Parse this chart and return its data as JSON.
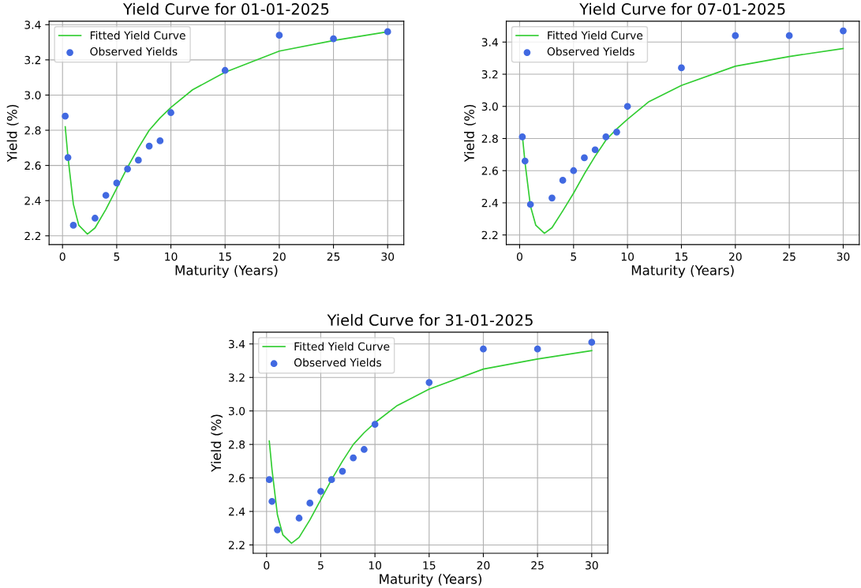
{
  "chart_data": [
    {
      "type": "line",
      "title": "Yield Curve for 01-01-2025",
      "xlabel": "Maturity (Years)",
      "ylabel": "Yield (%)",
      "xlim": [
        -1.24,
        31.49
      ],
      "ylim": [
        2.15,
        3.42
      ],
      "xticks": [
        0,
        5,
        10,
        15,
        20,
        25,
        30
      ],
      "yticks": [
        {
          "value": 2.2,
          "label": "2.2"
        },
        {
          "value": 2.4,
          "label": "2.4"
        },
        {
          "value": 2.6,
          "label": "2.6"
        },
        {
          "value": 2.8,
          "label": "2.8"
        },
        {
          "value": 3.0,
          "label": "3.0"
        },
        {
          "value": 3.2,
          "label": "3.2"
        },
        {
          "value": 3.4,
          "label": "3.4"
        }
      ],
      "grid": true,
      "legend": "top left",
      "series": [
        {
          "name": "Fitted Yield Curve",
          "color": "#32cd32",
          "x": [
            0.25,
            0.5,
            1,
            1.5,
            2.3,
            3,
            4,
            5,
            6,
            7,
            8,
            9,
            10,
            12,
            15,
            20,
            25,
            30
          ],
          "values": [
            2.82,
            2.65,
            2.38,
            2.26,
            2.21,
            2.245,
            2.35,
            2.47,
            2.59,
            2.7,
            2.8,
            2.87,
            2.93,
            3.03,
            3.13,
            3.25,
            3.31,
            3.36
          ]
        },
        {
          "name": "Observed Yields",
          "type": "scatter",
          "marker": "circle",
          "color": "#4169e1",
          "x": [
            0.25,
            0.5,
            1,
            3,
            4,
            5,
            6,
            7,
            8,
            9,
            10,
            15,
            20,
            25,
            30
          ],
          "values": [
            2.88,
            2.645,
            2.26,
            2.3,
            2.43,
            2.5,
            2.58,
            2.63,
            2.71,
            2.74,
            2.9,
            3.14,
            3.34,
            3.32,
            3.36
          ]
        }
      ]
    },
    {
      "type": "line",
      "title": "Yield Curve for 07-01-2025",
      "xlabel": "Maturity (Years)",
      "ylabel": "Yield (%)",
      "xlim": [
        -1.24,
        31.49
      ],
      "ylim": [
        2.14,
        3.53
      ],
      "xticks": [
        0,
        5,
        10,
        15,
        20,
        25,
        30
      ],
      "yticks": [
        {
          "value": 2.2,
          "label": "2.2"
        },
        {
          "value": 2.4,
          "label": "2.4"
        },
        {
          "value": 2.6,
          "label": "2.6"
        },
        {
          "value": 2.8,
          "label": "2.8"
        },
        {
          "value": 3.0,
          "label": "3.0"
        },
        {
          "value": 3.2,
          "label": "3.2"
        },
        {
          "value": 3.4,
          "label": "3.4"
        }
      ],
      "grid": true,
      "legend": "top left",
      "series": [
        {
          "name": "Fitted Yield Curve",
          "color": "#32cd32",
          "x": [
            0.25,
            0.5,
            1,
            1.5,
            2.3,
            3,
            4,
            5,
            6,
            7,
            8,
            9,
            10,
            12,
            15,
            20,
            25,
            30
          ],
          "values": [
            2.82,
            2.65,
            2.38,
            2.26,
            2.21,
            2.245,
            2.35,
            2.46,
            2.58,
            2.69,
            2.79,
            2.86,
            2.92,
            3.03,
            3.13,
            3.25,
            3.31,
            3.36
          ]
        },
        {
          "name": "Observed Yields",
          "type": "scatter",
          "marker": "circle",
          "color": "#4169e1",
          "x": [
            0.25,
            0.5,
            1,
            3,
            4,
            5,
            6,
            7,
            8,
            9,
            10,
            15,
            20,
            25,
            30
          ],
          "values": [
            2.81,
            2.66,
            2.39,
            2.43,
            2.54,
            2.6,
            2.68,
            2.73,
            2.81,
            2.84,
            3.0,
            3.24,
            3.44,
            3.44,
            3.47
          ]
        }
      ]
    },
    {
      "type": "line",
      "title": "Yield Curve for 31-01-2025",
      "xlabel": "Maturity (Years)",
      "ylabel": "Yield (%)",
      "xlim": [
        -1.24,
        31.49
      ],
      "ylim": [
        2.15,
        3.47
      ],
      "xticks": [
        0,
        5,
        10,
        15,
        20,
        25,
        30
      ],
      "yticks": [
        {
          "value": 2.2,
          "label": "2.2"
        },
        {
          "value": 2.4,
          "label": "2.4"
        },
        {
          "value": 2.6,
          "label": "2.6"
        },
        {
          "value": 2.8,
          "label": "2.8"
        },
        {
          "value": 3.0,
          "label": "3.0"
        },
        {
          "value": 3.2,
          "label": "3.2"
        },
        {
          "value": 3.4,
          "label": "3.4"
        }
      ],
      "grid": true,
      "legend": "top left",
      "series": [
        {
          "name": "Fitted Yield Curve",
          "color": "#32cd32",
          "x": [
            0.25,
            0.5,
            1,
            1.5,
            2.3,
            3,
            4,
            5,
            6,
            7,
            8,
            9,
            10,
            12,
            15,
            20,
            25,
            30
          ],
          "values": [
            2.82,
            2.65,
            2.38,
            2.26,
            2.21,
            2.245,
            2.35,
            2.47,
            2.59,
            2.7,
            2.8,
            2.87,
            2.93,
            3.03,
            3.13,
            3.25,
            3.31,
            3.36
          ]
        },
        {
          "name": "Observed Yields",
          "type": "scatter",
          "marker": "circle",
          "color": "#4169e1",
          "x": [
            0.25,
            0.5,
            1,
            3,
            4,
            5,
            6,
            7,
            8,
            9,
            10,
            15,
            20,
            25,
            30
          ],
          "values": [
            2.59,
            2.46,
            2.29,
            2.36,
            2.45,
            2.52,
            2.59,
            2.64,
            2.72,
            2.77,
            2.92,
            3.17,
            3.37,
            3.37,
            3.41
          ]
        }
      ]
    }
  ]
}
